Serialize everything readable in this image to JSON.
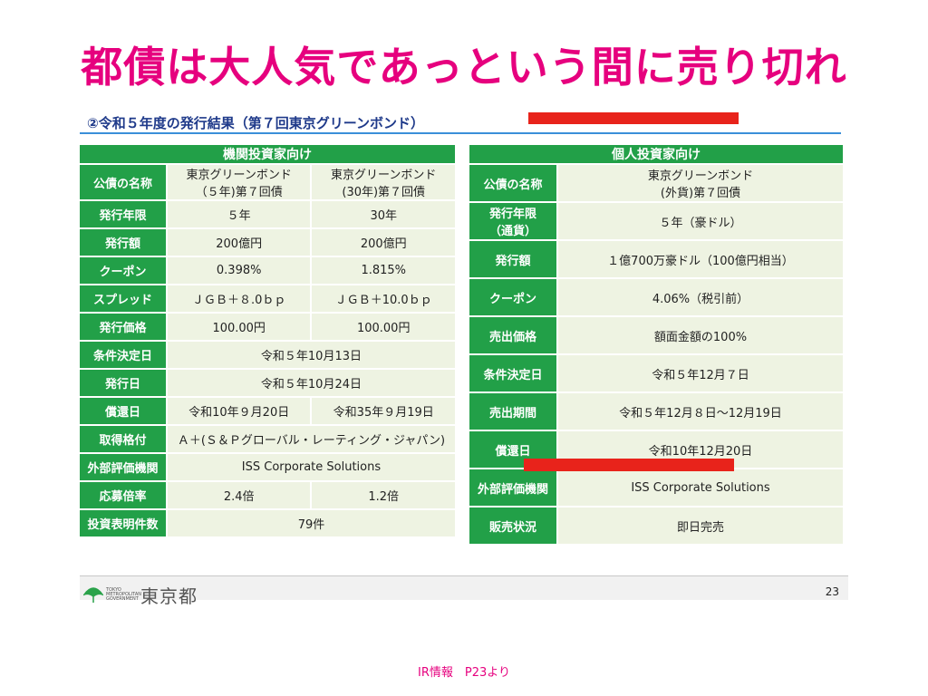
{
  "page": {
    "title": "都債は大人気であっという間に売り切れ",
    "caption": "IR情報　P23より"
  },
  "slide": {
    "subtitle": "②令和５年度の発行結果（第７回東京グリーンボンド）",
    "page_number": "23",
    "logo_small": "TOKYO METROPOLITAN GOVERNMENT",
    "logo_big": "東京都"
  },
  "institutional": {
    "header": "機関投資家向け",
    "rows": [
      {
        "label": "公債の名称",
        "v1": "東京グリーンボンド\n（５年)第７回債",
        "v2": "東京グリーンボンド\n(30年)第７回債"
      },
      {
        "label": "発行年限",
        "v1": "５年",
        "v2": "30年"
      },
      {
        "label": "発行額",
        "v1": "200億円",
        "v2": "200億円"
      },
      {
        "label": "クーポン",
        "v1": "0.398%",
        "v2": "1.815%"
      },
      {
        "label": "スプレッド",
        "v1": "ＪＧＢ＋８.0ｂｐ",
        "v2": "ＪＧＢ＋10.0ｂｐ"
      },
      {
        "label": "発行価格",
        "v1": "100.00円",
        "v2": "100.00円"
      },
      {
        "label": "条件決定日",
        "span": "令和５年10月13日"
      },
      {
        "label": "発行日",
        "span": "令和５年10月24日"
      },
      {
        "label": "償還日",
        "v1": "令和10年９月20日",
        "v2": "令和35年９月19日"
      },
      {
        "label": "取得格付",
        "span": "Ａ＋(Ｓ＆Ｐグローバル・レーティング・ジャパン)"
      },
      {
        "label": "外部評価機関",
        "span": "ISS Corporate Solutions"
      },
      {
        "label": "応募倍率",
        "v1": "2.4倍",
        "v2": "1.2倍"
      },
      {
        "label": "投資表明件数",
        "span": "79件"
      }
    ]
  },
  "individual": {
    "header": "個人投資家向け",
    "rows": [
      {
        "label": "公債の名称",
        "value": "東京グリーンボンド\n(外貨)第７回債"
      },
      {
        "label": "発行年限\n（通貨）",
        "value": "５年（豪ドル）"
      },
      {
        "label": "発行額",
        "value": "１億700万豪ドル（100億円相当）"
      },
      {
        "label": "クーポン",
        "value": "4.06%（税引前）"
      },
      {
        "label": "売出価格",
        "value": "額面金額の100%"
      },
      {
        "label": "条件決定日",
        "value": "令和５年12月７日"
      },
      {
        "label": "売出期間",
        "value": "令和５年12月８日～12月19日"
      },
      {
        "label": "償還日",
        "value": "令和10年12月20日"
      },
      {
        "label": "外部評価機関",
        "value": "ISS Corporate Solutions"
      },
      {
        "label": "販売状況",
        "value": "即日完売"
      }
    ]
  },
  "colors": {
    "title": "#e6007e",
    "table_green": "#22a048",
    "cell_bg": "#eef3e2",
    "highlight_red": "#e8231b",
    "subtitle_blue": "#1f3a8a"
  }
}
